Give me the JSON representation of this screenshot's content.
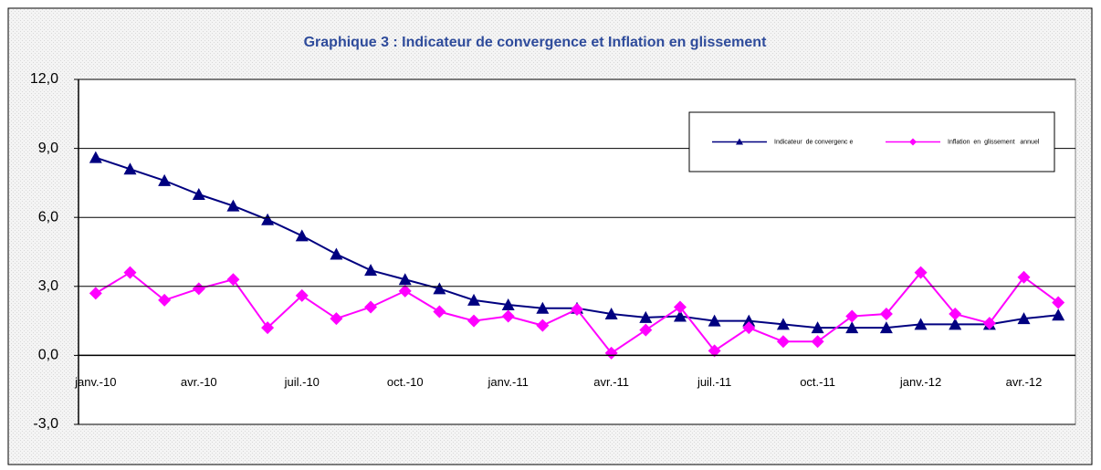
{
  "chart_data": {
    "type": "line",
    "title": "Graphique 3 : Indicateur de convergence et Inflation en glissement",
    "categories": [
      "janv.-10",
      null,
      null,
      "avr.-10",
      null,
      null,
      "juil.-10",
      null,
      null,
      "oct.-10",
      null,
      null,
      "janv.-11",
      null,
      null,
      "avr.-11",
      null,
      null,
      "juil.-11",
      null,
      null,
      "oct.-11",
      null,
      null,
      "janv.-12",
      null,
      null,
      "avr.-12",
      null
    ],
    "series": [
      {
        "name": "Indicateur  de convergenc e",
        "color": "#000080",
        "marker": "triangle",
        "values": [
          8.6,
          8.1,
          7.6,
          7.0,
          6.5,
          5.9,
          5.2,
          4.4,
          3.7,
          3.3,
          2.9,
          2.4,
          2.2,
          2.05,
          2.05,
          1.8,
          1.65,
          1.7,
          1.5,
          1.5,
          1.35,
          1.2,
          1.2,
          1.2,
          1.35,
          1.35,
          1.35,
          1.6,
          1.75
        ]
      },
      {
        "name": "Inflation  en  glissement   annuel",
        "color": "#ff00ff",
        "marker": "diamond",
        "values": [
          2.7,
          3.6,
          2.4,
          2.9,
          3.3,
          1.2,
          2.6,
          1.6,
          2.1,
          2.8,
          1.9,
          1.5,
          1.7,
          1.3,
          2.0,
          0.1,
          1.1,
          2.1,
          0.2,
          1.2,
          0.6,
          0.6,
          1.7,
          1.8,
          3.6,
          1.8,
          1.4,
          3.4,
          2.3
        ]
      }
    ],
    "ylim": [
      -3,
      12
    ],
    "yticks": [
      {
        "value": -3,
        "label": "-3,0"
      },
      {
        "value": 0,
        "label": "0,0"
      },
      {
        "value": 3,
        "label": "3,0"
      },
      {
        "value": 6,
        "label": "6,0"
      },
      {
        "value": 9,
        "label": "9,0"
      },
      {
        "value": 12,
        "label": "12,0"
      }
    ],
    "grid": true,
    "legend_position": "upper right"
  }
}
